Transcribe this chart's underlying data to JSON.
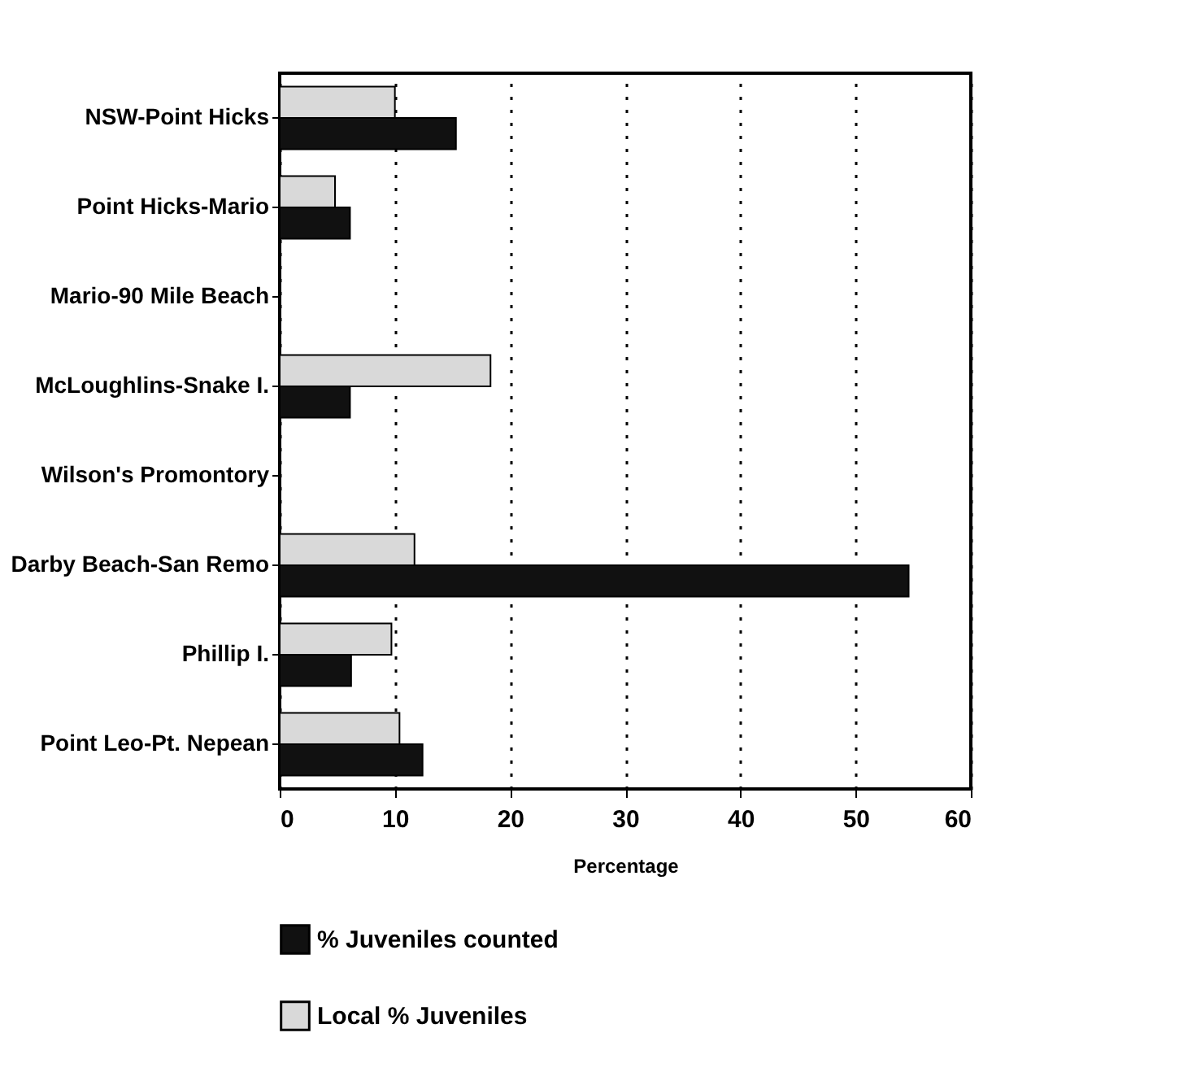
{
  "chart_data": {
    "type": "bar",
    "orientation": "horizontal",
    "xlabel": "Percentage",
    "categories": [
      "NSW-Point Hicks",
      "Point Hicks-Mario",
      "Mario-90 Mile Beach",
      "McLoughlins-Snake I.",
      "Wilson's Promontory",
      "Darby Beach-San Remo",
      "Phillip I.",
      "Point Leo-Pt. Nepean"
    ],
    "series": [
      {
        "name": "% Juveniles counted",
        "color": "#111111",
        "values": [
          15.3,
          6.1,
          null,
          6.1,
          null,
          54.6,
          6.2,
          12.4
        ]
      },
      {
        "name": "Local % Juveniles",
        "color": "#d9d9d9",
        "values": [
          10.0,
          4.8,
          null,
          18.3,
          null,
          11.7,
          9.7,
          10.4
        ]
      }
    ],
    "xlim": [
      0,
      60
    ],
    "xticks": [
      0,
      10,
      20,
      30,
      40,
      50,
      60
    ],
    "grid": "x",
    "legend": "bottom"
  }
}
